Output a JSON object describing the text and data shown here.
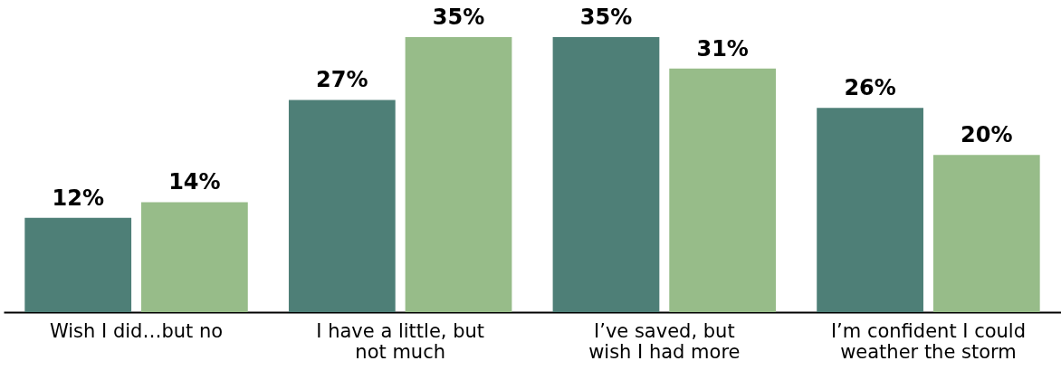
{
  "chart_data": {
    "type": "bar",
    "categories": [
      "Wish I did…but no",
      "I have a little, but\nnot much",
      "I’ve saved, but\nwish I had more",
      "I’m confident I could\nweather the storm"
    ],
    "series": [
      {
        "color": "#4e7f77",
        "values": [
          12,
          27,
          35,
          26
        ],
        "value_labels": [
          "12%",
          "27%",
          "35%",
          "26%"
        ]
      },
      {
        "color": "#97bc89",
        "values": [
          14,
          35,
          31,
          20
        ],
        "value_labels": [
          "14%",
          "35%",
          "31%",
          "20%"
        ]
      }
    ]
  }
}
